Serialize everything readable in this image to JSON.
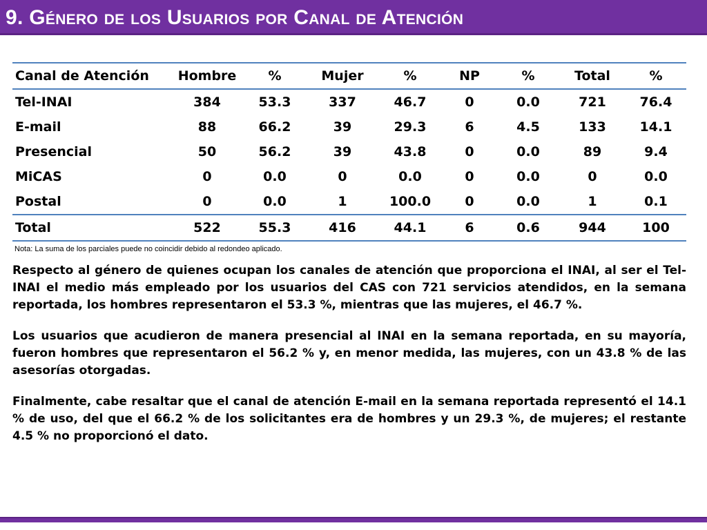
{
  "title": "9. Género de los Usuarios por Canal de Atención",
  "table": {
    "headers": [
      "Canal de Atención",
      "Hombre",
      "%",
      "Mujer",
      "%",
      "NP",
      "%",
      "Total",
      "%"
    ],
    "rows": [
      [
        "Tel-INAI",
        "384",
        "53.3",
        "337",
        "46.7",
        "0",
        "0.0",
        "721",
        "76.4"
      ],
      [
        "E-mail",
        "88",
        "66.2",
        "39",
        "29.3",
        "6",
        "4.5",
        "133",
        "14.1"
      ],
      [
        "Presencial",
        "50",
        "56.2",
        "39",
        "43.8",
        "0",
        "0.0",
        "89",
        "9.4"
      ],
      [
        "MiCAS",
        "0",
        "0.0",
        "0",
        "0.0",
        "0",
        "0.0",
        "0",
        "0.0"
      ],
      [
        "Postal",
        "0",
        "0.0",
        "1",
        "100.0",
        "0",
        "0.0",
        "1",
        "0.1"
      ]
    ],
    "total": [
      "Total",
      "522",
      "55.3",
      "416",
      "44.1",
      "6",
      "0.6",
      "944",
      "100"
    ]
  },
  "note": "Nota: La suma de los parciales puede no coincidir debido al redondeo aplicado.",
  "paragraphs": [
    "Respecto al género de quienes ocupan los canales de atención que proporciona el INAI, al ser el Tel-INAI el medio más empleado por los usuarios del CAS con 721 servicios atendidos, en la semana reportada, los hombres representaron el 53.3 %, mientras que las mujeres, el 46.7 %.",
    "Los usuarios que acudieron de manera presencial al INAI en la semana reportada, en su mayoría, fueron hombres que representaron el 56.2 % y, en menor medida, las mujeres, con un 43.8 % de las asesorías otorgadas.",
    "Finalmente, cabe resaltar que el canal de atención E-mail en la semana reportada representó el 14.1 % de uso, del que el 66.2 % de los solicitantes era de hombres y un 29.3 %, de mujeres; el restante 4.5 % no proporcionó el dato."
  ],
  "colors": {
    "title_bar": "#7030a0",
    "table_rule": "#4f81bd"
  }
}
